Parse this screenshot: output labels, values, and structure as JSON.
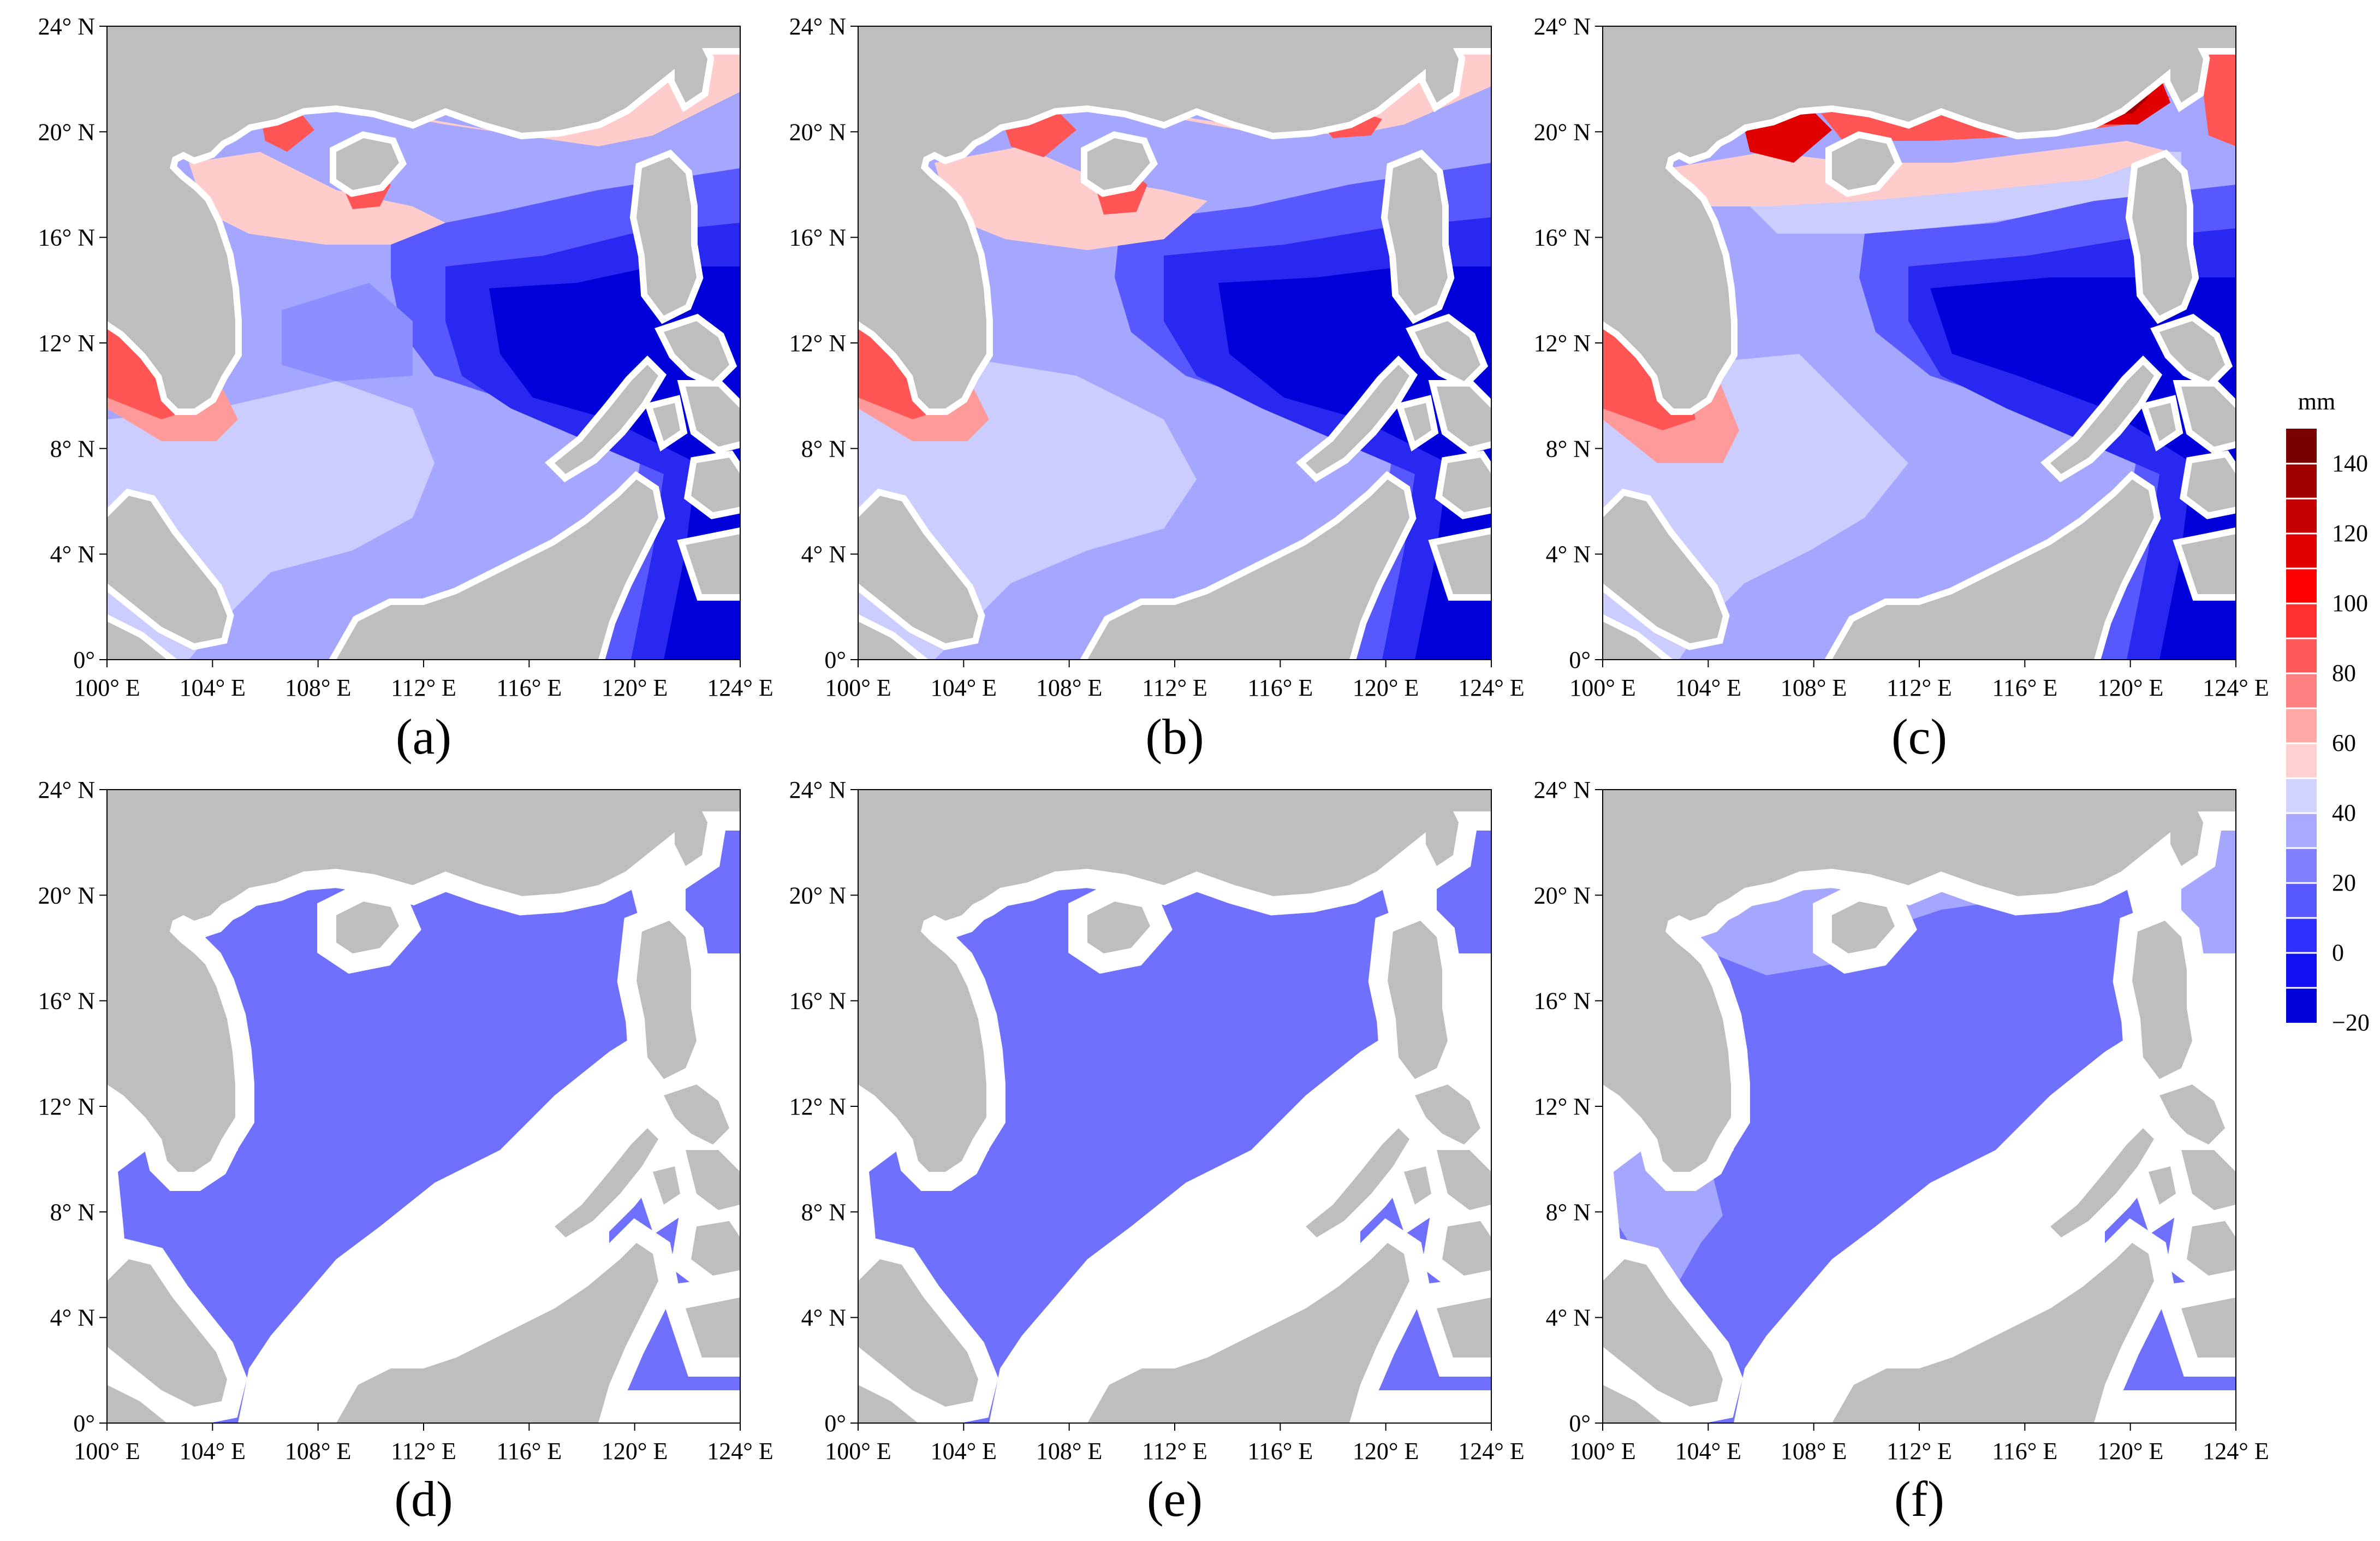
{
  "figure": {
    "x_ticks": [
      "100° E",
      "104° E",
      "108° E",
      "112° E",
      "116° E",
      "120° E",
      "124° E"
    ],
    "y_ticks": [
      "24° N",
      "20° N",
      "16° N",
      "12° N",
      "8° N",
      "4° N",
      "0°"
    ],
    "panels": [
      {
        "id": "a",
        "label": "(a)"
      },
      {
        "id": "b",
        "label": "(b)"
      },
      {
        "id": "c",
        "label": "(c)"
      },
      {
        "id": "d",
        "label": "(d)"
      },
      {
        "id": "e",
        "label": "(e)"
      },
      {
        "id": "f",
        "label": "(f)"
      }
    ]
  },
  "colorbar": {
    "unit": "mm",
    "tick_labels": [
      "140",
      "120",
      "100",
      "80",
      "60",
      "40",
      "20",
      "0",
      "−20"
    ],
    "colors": [
      "#7a0000",
      "#a00000",
      "#c40000",
      "#e00000",
      "#ff0000",
      "#ff3030",
      "#ff5858",
      "#ff8080",
      "#ffa8a8",
      "#ffd0d0",
      "#d0d2ff",
      "#a8aaff",
      "#8080ff",
      "#5858ff",
      "#3030ff",
      "#1010f0",
      "#0000d8"
    ]
  },
  "colors": {
    "land": "#bebebe",
    "coast_buffer": "#ffffff",
    "uniform_blue": "#7070ff",
    "light_blue": "#a4a6ff",
    "light_pink": "#ffcccc",
    "pink": "#ff9a9a",
    "red": "#ff5555",
    "deep_red": "#e00000",
    "darkest_red": "#a00000",
    "pale_blue": "#cccdff",
    "mid_blue": "#8c8eff",
    "blue": "#5858ff",
    "strong_blue": "#2828f0",
    "deepest_blue": "#0000d8"
  }
}
